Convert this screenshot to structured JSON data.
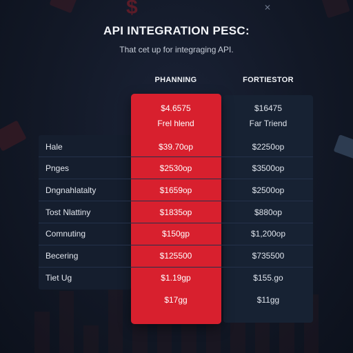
{
  "header": {
    "title": "API INTEGRATION PESC:",
    "subtitle": "That cet up for integraging API."
  },
  "plans": [
    {
      "heading": "PHANNING",
      "price": "$4.6575",
      "name": "Frel hlend"
    },
    {
      "heading": "FORTIESTOR",
      "price": "$16475",
      "name": "Far Triend"
    }
  ],
  "rows": [
    {
      "label": "Hale",
      "values": [
        "$39.70op",
        "$2250op"
      ]
    },
    {
      "label": "Pnges",
      "values": [
        "$2530op",
        "$3500op"
      ]
    },
    {
      "label": "Dngnahlatalty",
      "values": [
        "$1659op",
        "$2500op"
      ]
    },
    {
      "label": "Tost Nlattiny",
      "values": [
        "$1835op",
        "$880op"
      ]
    },
    {
      "label": "Comnuting",
      "values": [
        "$150gp",
        "$1,200op"
      ]
    },
    {
      "label": "Becering",
      "values": [
        "$125500",
        "$735500"
      ]
    },
    {
      "label": "Tiet Ug",
      "values": [
        "$1.19gp",
        "$155.go"
      ]
    }
  ],
  "footer_prices": [
    "$17gg",
    "$11gg"
  ],
  "colors": {
    "accent_red": "#d8202e",
    "panel_navy": "#172233",
    "background": "#121826"
  }
}
